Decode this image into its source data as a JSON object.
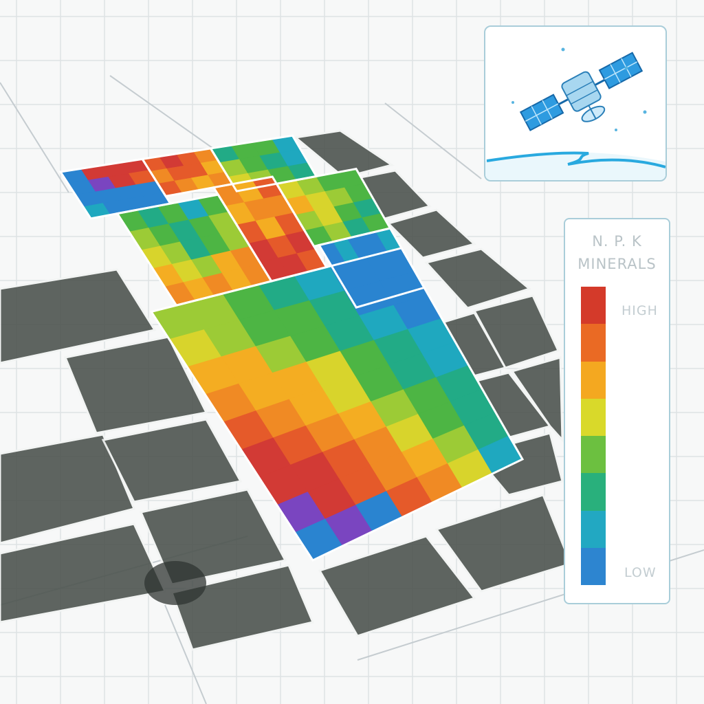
{
  "legend": {
    "title_line_1": "N. P. K",
    "title_line_2": "MINERALS",
    "high_label": "HIGH",
    "low_label": "LOW",
    "scale_colors": [
      "#d43a2a",
      "#ea6a24",
      "#f4a820",
      "#d9d92a",
      "#6cc040",
      "#29b07c",
      "#22a8c2",
      "#2d85d0"
    ]
  },
  "satellite": {
    "icon": "satellite-icon",
    "body_color": "#a8d7f0",
    "panel_color": "#2e9be0"
  },
  "field_map": {
    "colors": {
      "purple": "#7a45c0",
      "red": "#d23a35",
      "orange_red": "#e55a2a",
      "orange": "#f08a24",
      "amber": "#f4ad22",
      "yellow": "#d8d42c",
      "lime": "#9ccb36",
      "green": "#4db544",
      "teal": "#22ab86",
      "cyan": "#1fa8bf",
      "blue": "#2a84d0",
      "dark_field": "#4e5550"
    },
    "plots": [
      {
        "id": "plot-1",
        "rows": [
          [
            "blue",
            "red",
            "red",
            "red"
          ],
          [
            "blue",
            "purple",
            "red",
            "orange_red"
          ],
          [
            "blue",
            "blue",
            "blue",
            "blue"
          ],
          [
            "cyan",
            "blue",
            "blue",
            "blue"
          ]
        ]
      },
      {
        "id": "plot-2",
        "rows": [
          [
            "orange_red",
            "red",
            "orange_red",
            "orange"
          ],
          [
            "orange",
            "orange_red",
            "orange_red",
            "amber"
          ],
          [
            "orange_red",
            "orange",
            "amber",
            "orange"
          ]
        ]
      },
      {
        "id": "plot-3",
        "rows": [
          [
            "teal",
            "green",
            "green",
            "cyan"
          ],
          [
            "lime",
            "green",
            "teal",
            "cyan"
          ],
          [
            "yellow",
            "lime",
            "green",
            "teal"
          ]
        ]
      },
      {
        "id": "plot-4",
        "rows": [
          [
            "green",
            "teal",
            "green",
            "cyan",
            "green"
          ],
          [
            "lime",
            "green",
            "teal",
            "green",
            "lime"
          ],
          [
            "yellow",
            "lime",
            "teal",
            "green",
            "lime"
          ],
          [
            "amber",
            "yellow",
            "lime",
            "amber",
            "orange"
          ],
          [
            "orange",
            "amber",
            "orange",
            "amber",
            "orange"
          ]
        ]
      },
      {
        "id": "plot-5",
        "rows": [
          [
            "orange",
            "amber",
            "orange_red"
          ],
          [
            "amber",
            "orange",
            "orange"
          ],
          [
            "orange_red",
            "amber",
            "orange_red"
          ],
          [
            "red",
            "orange_red",
            "red"
          ],
          [
            "red",
            "red",
            "orange_red"
          ]
        ]
      },
      {
        "id": "plot-6",
        "rows": [
          [
            "yellow",
            "lime",
            "green",
            "green"
          ],
          [
            "amber",
            "yellow",
            "lime",
            "green"
          ],
          [
            "lime",
            "yellow",
            "green",
            "teal"
          ],
          [
            "green",
            "lime",
            "teal",
            "green"
          ]
        ]
      },
      {
        "id": "plot-7",
        "rows": [
          [
            "blue",
            "cyan",
            "blue",
            "blue",
            "cyan"
          ],
          [
            "cyan",
            "blue",
            "blue",
            "cyan",
            "blue"
          ],
          [
            "blue",
            "cyan",
            "blue",
            "blue",
            "cyan"
          ]
        ]
      },
      {
        "id": "plot-8",
        "rows": [
          [
            "lime",
            "lime",
            "green",
            "teal",
            "cyan",
            "blue",
            "blue"
          ],
          [
            "yellow",
            "lime",
            "green",
            "green",
            "teal",
            "blue",
            "blue"
          ],
          [
            "amber",
            "amber",
            "lime",
            "green",
            "teal",
            "cyan",
            "blue"
          ],
          [
            "orange",
            "amber",
            "amber",
            "yellow",
            "green",
            "teal",
            "cyan"
          ],
          [
            "orange_red",
            "orange",
            "amber",
            "yellow",
            "green",
            "teal",
            "cyan"
          ],
          [
            "red",
            "orange_red",
            "orange",
            "amber",
            "lime",
            "green",
            "teal"
          ],
          [
            "red",
            "red",
            "orange_red",
            "orange",
            "yellow",
            "green",
            "teal"
          ],
          [
            "purple",
            "red",
            "orange_red",
            "orange",
            "amber",
            "lime",
            "teal"
          ],
          [
            "blue",
            "purple",
            "blue",
            "orange_red",
            "orange",
            "yellow",
            "cyan"
          ]
        ]
      }
    ]
  }
}
